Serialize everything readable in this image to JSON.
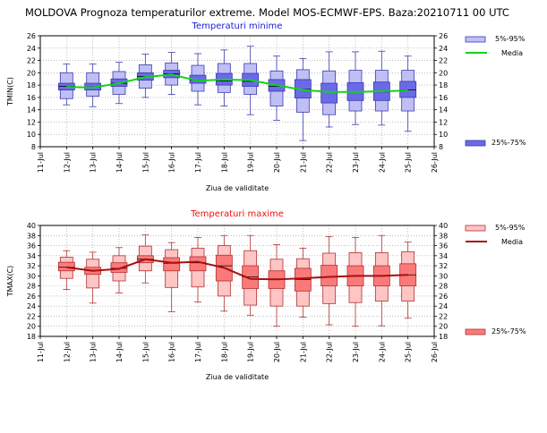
{
  "header": {
    "title": "MOLDOVA  Prognoza temperaturilor extreme.  Model MOS-ECMWF-EPS. Baza:20210711 00 UTC"
  },
  "chart_data": [
    {
      "type": "box",
      "title": "Temperaturi minime",
      "title_color": "#1a1adb",
      "xlabel": "Ziua de validitate",
      "ylabel": "TMIN(C)",
      "ylim": [
        8,
        26
      ],
      "yticks": [
        8,
        10,
        12,
        14,
        16,
        18,
        20,
        22,
        24,
        26
      ],
      "x_categories": [
        "11-Jul",
        "12-Jul",
        "13-Jul",
        "14-Jul",
        "15-Jul",
        "16-Jul",
        "17-Jul",
        "18-Jul",
        "19-Jul",
        "20-Jul",
        "21-Jul",
        "22-Jul",
        "23-Jul",
        "24-Jul",
        "25-Jul",
        "26-Jul"
      ],
      "colors": {
        "inner_fill": "#6a6ae8",
        "outer_fill": "#bfbff5",
        "edge": "#3a3ab0",
        "mean_line": "#12d21a",
        "grid": "#9a9a9a"
      },
      "legend": {
        "placement": "right",
        "outer_label": "5%-95%",
        "mean_label": "Media",
        "inner_label": "25%-75%"
      },
      "days": [
        "12-Jul",
        "13-Jul",
        "14-Jul",
        "15-Jul",
        "16-Jul",
        "17-Jul",
        "18-Jul",
        "19-Jul",
        "20-Jul",
        "21-Jul",
        "22-Jul",
        "23-Jul",
        "24-Jul",
        "25-Jul"
      ],
      "boxes": [
        {
          "min": 14.8,
          "p5": 15.8,
          "q1": 17.2,
          "median": 17.8,
          "q3": 18.3,
          "p95": 20.0,
          "max": 21.4
        },
        {
          "min": 14.5,
          "p5": 16.2,
          "q1": 17.2,
          "median": 17.7,
          "q3": 18.3,
          "p95": 20.0,
          "max": 21.4
        },
        {
          "min": 15.0,
          "p5": 16.5,
          "q1": 17.8,
          "median": 18.3,
          "q3": 19.0,
          "p95": 20.2,
          "max": 21.7
        },
        {
          "min": 16.0,
          "p5": 17.5,
          "q1": 18.8,
          "median": 19.4,
          "q3": 20.0,
          "p95": 21.3,
          "max": 23.0
        },
        {
          "min": 16.5,
          "p5": 18.0,
          "q1": 19.2,
          "median": 19.8,
          "q3": 20.4,
          "p95": 21.6,
          "max": 23.3
        },
        {
          "min": 14.8,
          "p5": 17.0,
          "q1": 18.3,
          "median": 18.8,
          "q3": 19.6,
          "p95": 21.2,
          "max": 23.1
        },
        {
          "min": 14.6,
          "p5": 16.8,
          "q1": 18.0,
          "median": 18.7,
          "q3": 19.9,
          "p95": 21.5,
          "max": 23.7
        },
        {
          "min": 13.2,
          "p5": 16.5,
          "q1": 17.8,
          "median": 18.6,
          "q3": 19.9,
          "p95": 21.5,
          "max": 24.3
        },
        {
          "min": 12.3,
          "p5": 14.6,
          "q1": 17.0,
          "median": 17.8,
          "q3": 18.9,
          "p95": 20.3,
          "max": 22.7
        },
        {
          "min": 9.0,
          "p5": 13.6,
          "q1": 15.9,
          "median": 17.3,
          "q3": 18.9,
          "p95": 20.5,
          "max": 22.3
        },
        {
          "min": 11.2,
          "p5": 13.2,
          "q1": 15.1,
          "median": 16.9,
          "q3": 18.3,
          "p95": 20.3,
          "max": 23.4
        },
        {
          "min": 11.6,
          "p5": 13.8,
          "q1": 15.5,
          "median": 16.9,
          "q3": 18.4,
          "p95": 20.4,
          "max": 23.4
        },
        {
          "min": 11.5,
          "p5": 13.8,
          "q1": 15.5,
          "median": 16.9,
          "q3": 18.5,
          "p95": 20.4,
          "max": 23.5
        },
        {
          "min": 10.5,
          "p5": 13.8,
          "q1": 16.0,
          "median": 17.2,
          "q3": 18.6,
          "p95": 20.4,
          "max": 22.7
        }
      ],
      "mean": [
        17.7,
        17.6,
        18.3,
        19.3,
        19.7,
        18.7,
        18.9,
        18.8,
        18.0,
        17.2,
        16.9,
        16.9,
        17.0,
        17.1
      ]
    },
    {
      "type": "box",
      "title": "Temperaturi maxime",
      "title_color": "#ee1111",
      "xlabel": "Ziua de validitate",
      "ylabel": "TMAX(C)",
      "ylim": [
        18,
        40
      ],
      "yticks": [
        18,
        20,
        22,
        24,
        26,
        28,
        30,
        32,
        34,
        36,
        38,
        40
      ],
      "x_categories": [
        "11-Jul",
        "12-Jul",
        "13-Jul",
        "14-Jul",
        "15-Jul",
        "16-Jul",
        "17-Jul",
        "18-Jul",
        "19-Jul",
        "20-Jul",
        "21-Jul",
        "22-Jul",
        "23-Jul",
        "24-Jul",
        "25-Jul",
        "26-Jul"
      ],
      "colors": {
        "inner_fill": "#fa7a7a",
        "outer_fill": "#ffc5c5",
        "edge": "#b03030",
        "mean_line": "#a81010",
        "grid": "#9a9a9a"
      },
      "legend": {
        "placement": "right",
        "outer_label": "5%-95%",
        "mean_label": "Media",
        "inner_label": "25%-75%"
      },
      "days": [
        "12-Jul",
        "13-Jul",
        "14-Jul",
        "15-Jul",
        "16-Jul",
        "17-Jul",
        "18-Jul",
        "19-Jul",
        "20-Jul",
        "21-Jul",
        "22-Jul",
        "23-Jul",
        "24-Jul",
        "25-Jul"
      ],
      "boxes": [
        {
          "min": 27.3,
          "p5": 29.5,
          "q1": 31.0,
          "median": 31.7,
          "q3": 32.7,
          "p95": 33.7,
          "max": 35.0
        },
        {
          "min": 24.6,
          "p5": 27.6,
          "q1": 30.3,
          "median": 31.1,
          "q3": 31.7,
          "p95": 33.3,
          "max": 34.7
        },
        {
          "min": 26.6,
          "p5": 29.0,
          "q1": 30.7,
          "median": 31.5,
          "q3": 32.6,
          "p95": 34.0,
          "max": 35.6
        },
        {
          "min": 28.6,
          "p5": 31.0,
          "q1": 32.6,
          "median": 33.3,
          "q3": 34.0,
          "p95": 35.9,
          "max": 38.1
        },
        {
          "min": 22.9,
          "p5": 27.7,
          "q1": 31.0,
          "median": 32.5,
          "q3": 33.6,
          "p95": 35.2,
          "max": 36.6
        },
        {
          "min": 24.8,
          "p5": 27.8,
          "q1": 31.0,
          "median": 32.6,
          "q3": 33.8,
          "p95": 35.5,
          "max": 37.6
        },
        {
          "min": 23.0,
          "p5": 26.0,
          "q1": 29.0,
          "median": 32.0,
          "q3": 34.1,
          "p95": 36.0,
          "max": 38.0
        },
        {
          "min": 22.2,
          "p5": 24.2,
          "q1": 27.5,
          "median": 29.8,
          "q3": 32.0,
          "p95": 35.0,
          "max": 38.0
        },
        {
          "min": 20.0,
          "p5": 24.0,
          "q1": 27.5,
          "median": 29.4,
          "q3": 31.0,
          "p95": 33.3,
          "max": 36.2
        },
        {
          "min": 21.8,
          "p5": 24.0,
          "q1": 27.0,
          "median": 29.3,
          "q3": 31.5,
          "p95": 33.4,
          "max": 35.5
        },
        {
          "min": 20.3,
          "p5": 24.5,
          "q1": 28.0,
          "median": 29.8,
          "q3": 32.1,
          "p95": 34.5,
          "max": 37.8
        },
        {
          "min": 20.0,
          "p5": 24.7,
          "q1": 28.0,
          "median": 30.0,
          "q3": 32.0,
          "p95": 34.6,
          "max": 37.6
        },
        {
          "min": 20.1,
          "p5": 25.0,
          "q1": 28.0,
          "median": 30.0,
          "q3": 32.0,
          "p95": 34.6,
          "max": 38.0
        },
        {
          "min": 21.6,
          "p5": 25.0,
          "q1": 28.0,
          "median": 30.2,
          "q3": 32.4,
          "p95": 34.8,
          "max": 36.7
        }
      ],
      "mean": [
        31.7,
        31.0,
        31.4,
        33.3,
        32.6,
        32.8,
        31.6,
        29.4,
        29.3,
        29.5,
        29.8,
        30.0,
        30.0,
        30.2
      ]
    }
  ]
}
